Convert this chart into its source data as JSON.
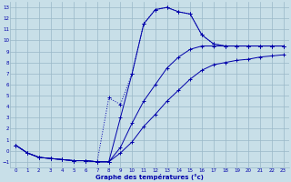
{
  "xlabel": "Graphe des températures (°c)",
  "xlim": [
    -0.5,
    23.5
  ],
  "ylim": [
    -1.5,
    13.5
  ],
  "xticks": [
    0,
    1,
    2,
    3,
    4,
    5,
    6,
    7,
    8,
    9,
    10,
    11,
    12,
    13,
    14,
    15,
    16,
    17,
    18,
    19,
    20,
    21,
    22,
    23
  ],
  "yticks": [
    -1,
    0,
    1,
    2,
    3,
    4,
    5,
    6,
    7,
    8,
    9,
    10,
    11,
    12,
    13
  ],
  "bg_color": "#c8dfe8",
  "line_color": "#0000aa",
  "grid_color": "#9ab8c8",
  "line1_x": [
    0,
    1,
    2,
    3,
    4,
    5,
    6,
    7,
    8,
    9,
    10,
    11,
    12,
    13,
    14,
    15,
    16,
    17,
    18,
    19,
    20,
    21,
    22,
    23
  ],
  "line1_y": [
    0.5,
    -0.2,
    -0.6,
    -0.7,
    -0.8,
    -0.9,
    -0.9,
    -1.0,
    -1.0,
    3.0,
    7.0,
    11.5,
    12.8,
    13.0,
    12.6,
    12.4,
    10.5,
    9.7,
    9.5,
    9.5,
    9.5,
    9.5,
    9.5,
    9.5
  ],
  "line2_x": [
    0,
    1,
    2,
    3,
    4,
    5,
    6,
    7,
    8,
    9,
    10,
    11,
    12,
    13,
    14,
    15,
    16,
    17,
    18,
    19,
    20,
    21,
    22,
    23
  ],
  "line2_y": [
    0.5,
    -0.2,
    -0.6,
    -0.7,
    -0.8,
    -0.9,
    -0.9,
    -1.0,
    4.8,
    4.2,
    7.0,
    11.5,
    12.8,
    13.0,
    12.6,
    12.4,
    10.5,
    9.7,
    9.5,
    9.5,
    9.5,
    9.5,
    9.5,
    9.5
  ],
  "line3_x": [
    0,
    1,
    2,
    3,
    4,
    5,
    6,
    7,
    8,
    9,
    10,
    11,
    12,
    13,
    14,
    15,
    16,
    17,
    18,
    19,
    20,
    21,
    22,
    23
  ],
  "line3_y": [
    0.5,
    -0.2,
    -0.6,
    -0.7,
    -0.8,
    -0.9,
    -0.9,
    -1.0,
    -1.0,
    0.3,
    2.5,
    4.5,
    6.0,
    7.5,
    8.5,
    9.2,
    9.5,
    9.5,
    9.5,
    9.5,
    9.5,
    9.5,
    9.5,
    9.5
  ],
  "line4_x": [
    0,
    1,
    2,
    3,
    4,
    5,
    6,
    7,
    8,
    9,
    10,
    11,
    12,
    13,
    14,
    15,
    16,
    17,
    18,
    19,
    20,
    21,
    22,
    23
  ],
  "line4_y": [
    0.5,
    -0.2,
    -0.6,
    -0.7,
    -0.8,
    -0.9,
    -0.9,
    -1.0,
    -1.0,
    -0.2,
    0.8,
    2.2,
    3.3,
    4.5,
    5.5,
    6.5,
    7.3,
    7.8,
    8.0,
    8.2,
    8.3,
    8.5,
    8.6,
    8.7
  ]
}
